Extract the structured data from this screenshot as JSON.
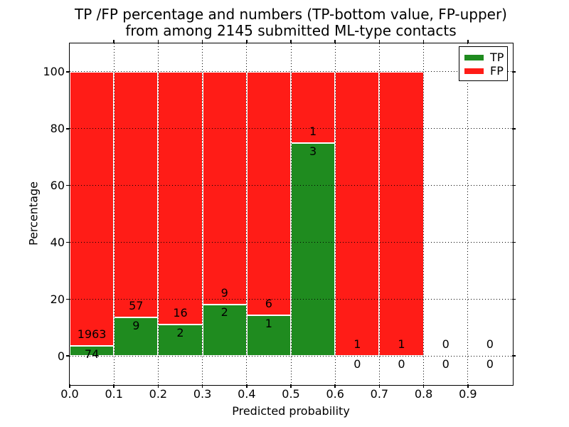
{
  "chart_data": {
    "type": "bar",
    "stacked": true,
    "title_lines": [
      "TP /FP percentage and numbers (TP-bottom value, FP-upper)",
      "from among 2145 submitted ML-type contacts"
    ],
    "xlabel": "Predicted probability",
    "ylabel": "Percentage",
    "xlim": [
      0.0,
      1.0
    ],
    "ylim": [
      -10,
      110
    ],
    "xtick_labels": [
      "0.0",
      "0.1",
      "0.2",
      "0.3",
      "0.4",
      "0.5",
      "0.6",
      "0.7",
      "0.8",
      "0.9"
    ],
    "ytick_labels": [
      "0",
      "20",
      "40",
      "60",
      "80",
      "100"
    ],
    "grid": "dotted",
    "legend": {
      "position": "upper right",
      "entries": [
        {
          "label": "TP",
          "color": "#1f8b1f"
        },
        {
          "label": "FP",
          "color": "#ff1c17"
        }
      ]
    },
    "colors": {
      "tp": "#1f8b1f",
      "fp": "#ff1c17"
    },
    "bins": [
      {
        "range": [
          0.0,
          0.1
        ],
        "tp": 74,
        "fp": 1963,
        "tp_pct": 3.63,
        "fp_pct": 96.37
      },
      {
        "range": [
          0.1,
          0.2
        ],
        "tp": 9,
        "fp": 57,
        "tp_pct": 13.64,
        "fp_pct": 86.36
      },
      {
        "range": [
          0.2,
          0.3
        ],
        "tp": 2,
        "fp": 16,
        "tp_pct": 11.11,
        "fp_pct": 88.89
      },
      {
        "range": [
          0.3,
          0.4
        ],
        "tp": 2,
        "fp": 9,
        "tp_pct": 18.18,
        "fp_pct": 81.82
      },
      {
        "range": [
          0.4,
          0.5
        ],
        "tp": 1,
        "fp": 6,
        "tp_pct": 14.29,
        "fp_pct": 85.71
      },
      {
        "range": [
          0.5,
          0.6
        ],
        "tp": 3,
        "fp": 1,
        "tp_pct": 75.0,
        "fp_pct": 25.0
      },
      {
        "range": [
          0.6,
          0.7
        ],
        "tp": 0,
        "fp": 1,
        "tp_pct": 0.0,
        "fp_pct": 100.0
      },
      {
        "range": [
          0.7,
          0.8
        ],
        "tp": 0,
        "fp": 1,
        "tp_pct": 0.0,
        "fp_pct": 100.0
      },
      {
        "range": [
          0.8,
          0.9
        ],
        "tp": 0,
        "fp": 0,
        "tp_pct": 0.0,
        "fp_pct": 0.0
      },
      {
        "range": [
          0.9,
          1.0
        ],
        "tp": 0,
        "fp": 0,
        "tp_pct": 0.0,
        "fp_pct": 0.0
      }
    ],
    "annotation_offsets": {
      "fp_label_pct": 4.0,
      "tp_label_pct": -3.0
    }
  }
}
